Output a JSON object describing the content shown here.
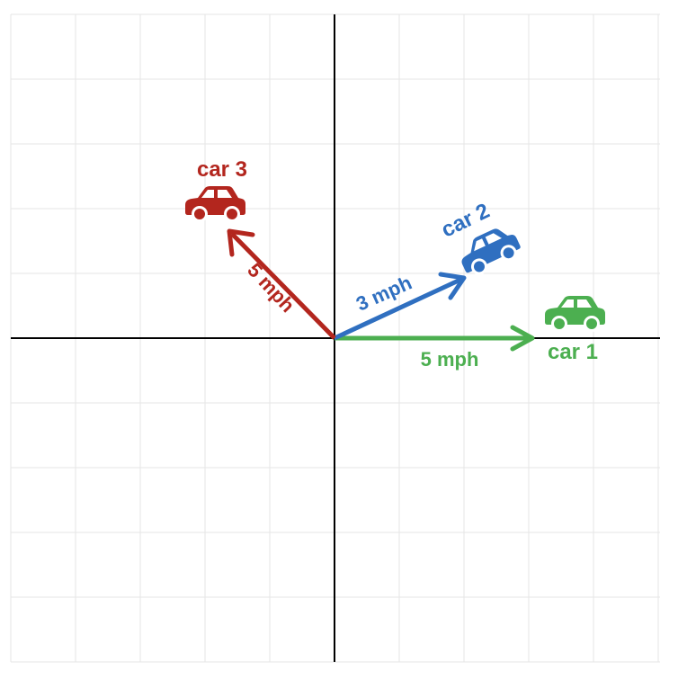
{
  "colors": {
    "grid": "#e6e6e6",
    "axis": "#000000",
    "car1": "#4caf50",
    "car2": "#2f6fc0",
    "car3": "#b3261e"
  },
  "vectors": [
    {
      "id": "car1",
      "car_label": "car 1",
      "speed_label": "5 mph",
      "icon": "car-icon",
      "color_key": "car1",
      "dx": 3,
      "dy": 0
    },
    {
      "id": "car2",
      "car_label": "car 2",
      "speed_label": "3 mph",
      "icon": "car-icon",
      "color_key": "car2",
      "dx": 2,
      "dy": 1
    },
    {
      "id": "car3",
      "car_label": "car 3",
      "speed_label": "5 mph",
      "icon": "car-icon",
      "color_key": "car3",
      "dx": -1.6,
      "dy": 1.6
    }
  ]
}
